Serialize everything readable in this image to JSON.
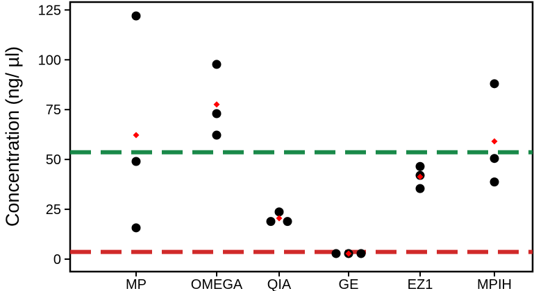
{
  "chart_data": {
    "type": "scatter",
    "title": "",
    "xlabel": "",
    "ylabel": "Concentration (ng/ µl)",
    "categories": [
      "MP",
      "OMEGA",
      "QIA",
      "GE",
      "EZ1",
      "MPIH"
    ],
    "ylim": [
      0,
      130
    ],
    "yticks": [
      0,
      25,
      50,
      75,
      100,
      125
    ],
    "grid": false,
    "legend": "none",
    "series": [
      {
        "marker": "circle",
        "color": "#000000",
        "points": [
          {
            "category": "MP",
            "offset": 0,
            "y": 122
          },
          {
            "category": "MP",
            "offset": 0,
            "y": 49
          },
          {
            "category": "MP",
            "offset": 0,
            "y": 15.7
          },
          {
            "category": "OMEGA",
            "offset": 0,
            "y": 97.7
          },
          {
            "category": "OMEGA",
            "offset": 0,
            "y": 73
          },
          {
            "category": "OMEGA",
            "offset": 0,
            "y": 62.2
          },
          {
            "category": "QIA",
            "offset": 0,
            "y": 23.7
          },
          {
            "category": "QIA",
            "offset": -0.12,
            "y": 18.9
          },
          {
            "category": "QIA",
            "offset": 0.12,
            "y": 18.9
          },
          {
            "category": "GE",
            "offset": -0.18,
            "y": 2.8
          },
          {
            "category": "GE",
            "offset": 0,
            "y": 2.8
          },
          {
            "category": "GE",
            "offset": 0.18,
            "y": 2.8
          },
          {
            "category": "EZ1",
            "offset": 0,
            "y": 46.5
          },
          {
            "category": "EZ1",
            "offset": 0,
            "y": 42
          },
          {
            "category": "EZ1",
            "offset": 0,
            "y": 35.4
          },
          {
            "category": "MPIH",
            "offset": 0,
            "y": 88
          },
          {
            "category": "MPIH",
            "offset": 0,
            "y": 50.5
          },
          {
            "category": "MPIH",
            "offset": 0,
            "y": 38.7
          }
        ]
      },
      {
        "marker": "diamond",
        "color": "#ff0000",
        "points": [
          {
            "category": "MP",
            "y": 62.2
          },
          {
            "category": "OMEGA",
            "y": 77.6
          },
          {
            "category": "QIA",
            "y": 20.5
          },
          {
            "category": "GE",
            "y": 2.8
          },
          {
            "category": "EZ1",
            "y": 41.3
          },
          {
            "category": "MPIH",
            "y": 59.1
          }
        ]
      }
    ],
    "reference_lines": [
      {
        "y": 53.6,
        "color": "#1a8a4a",
        "style": "dashed"
      },
      {
        "y": 3.6,
        "color": "#d12a2a",
        "style": "dashed"
      }
    ]
  }
}
